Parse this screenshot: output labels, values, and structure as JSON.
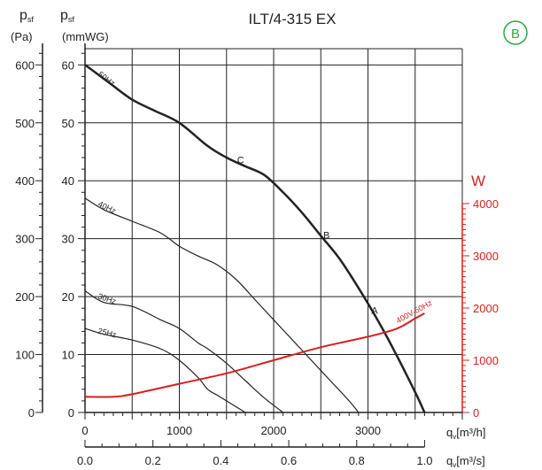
{
  "chart_data": {
    "type": "line",
    "title": "ILT/4-315 EX",
    "badge": "B",
    "y_left_outer": {
      "label_sym": "p",
      "label_sub": "sf",
      "unit": "(Pa)",
      "ticks": [
        "0",
        "100",
        "200",
        "300",
        "400",
        "500",
        "600"
      ],
      "range": [
        0,
        600
      ]
    },
    "y_left_inner": {
      "label_sym": "p",
      "label_sub": "sf",
      "unit": "(mmWG)",
      "ticks": [
        "0",
        "10",
        "20",
        "30",
        "40",
        "50",
        "60"
      ],
      "range": [
        0,
        60
      ]
    },
    "y_right": {
      "label": "W",
      "ticks": [
        "0",
        "1000",
        "2000",
        "3000",
        "4000"
      ],
      "range": [
        0,
        4000
      ],
      "color": "#d62020"
    },
    "x_primary": {
      "label_sym": "q",
      "label_sub": "v",
      "unit": "[m³/h]",
      "ticks": [
        "0",
        "1000",
        "2000",
        "3000"
      ],
      "range": [
        0,
        4000
      ]
    },
    "x_secondary": {
      "label_sym": "q",
      "label_sub": "v",
      "unit": "[m³/s]",
      "ticks": [
        "0.0",
        "0.2",
        "0.4",
        "0.6",
        "0.8",
        "1.0"
      ],
      "range": [
        0,
        1.111
      ]
    },
    "grid": true,
    "series": [
      {
        "name": "50Hz",
        "color": "#222222",
        "width": 2.5,
        "x": [
          0,
          250,
          500,
          750,
          1000,
          1300,
          1500,
          1700,
          1900,
          2100,
          2300,
          2500,
          2700,
          2900,
          3100,
          3300,
          3500,
          3600
        ],
        "y": [
          60,
          57,
          54,
          52,
          50,
          46,
          44,
          42.5,
          41,
          38,
          34.5,
          30.5,
          26.5,
          21.5,
          16,
          10,
          3.5,
          0
        ]
      },
      {
        "name": "40Hz",
        "color": "#222222",
        "width": 1.2,
        "x": [
          0,
          200,
          500,
          800,
          1000,
          1200,
          1400,
          1600,
          1800,
          2000,
          2200,
          2400,
          2600,
          2800,
          2900
        ],
        "y": [
          37,
          35,
          33,
          31,
          28.7,
          27,
          25.5,
          23,
          19.5,
          16,
          12.5,
          9,
          5.5,
          2,
          0
        ]
      },
      {
        "name": "30Hz",
        "color": "#222222",
        "width": 1.2,
        "x": [
          0,
          200,
          500,
          800,
          1000,
          1200,
          1300,
          1500,
          1700,
          1900,
          2100
        ],
        "y": [
          21,
          19,
          18.3,
          16,
          14.5,
          12,
          11,
          8.5,
          5.5,
          2.5,
          0
        ]
      },
      {
        "name": "25Hz",
        "color": "#222222",
        "width": 1.2,
        "x": [
          0,
          200,
          500,
          800,
          1000,
          1200,
          1300,
          1400,
          1500,
          1600,
          1700
        ],
        "y": [
          14.5,
          13.5,
          12.5,
          11,
          9,
          6,
          4,
          3,
          2,
          1,
          0
        ]
      },
      {
        "name": "400V-50Hz",
        "axis": "right",
        "color": "#d62020",
        "width": 2,
        "x": [
          0,
          300,
          500,
          1000,
          1500,
          2000,
          2500,
          3000,
          3300,
          3500,
          3600
        ],
        "y": [
          300,
          300,
          350,
          550,
          750,
          1000,
          1250,
          1450,
          1600,
          1800,
          1900
        ]
      }
    ],
    "annotations": [
      {
        "text": "C",
        "x": 1650,
        "y": 43
      },
      {
        "text": "B",
        "x": 2560,
        "y": 30
      },
      {
        "text": "A",
        "x": 3070,
        "y": 17
      }
    ]
  }
}
